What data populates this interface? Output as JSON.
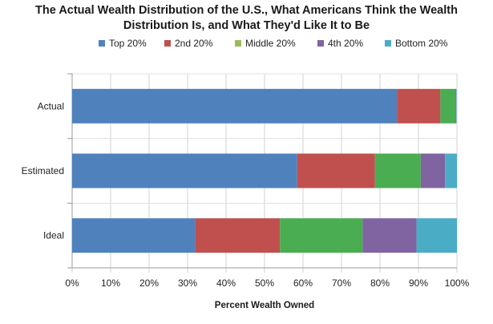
{
  "chart_data": {
    "type": "bar",
    "orientation": "horizontal",
    "stacked": true,
    "title": "The Actual Wealth Distribution of the U.S., What Americans Think the Wealth Distribution Is, and What They'd Like It to Be",
    "title_lines": [
      "The Actual Wealth Distribution of the U.S., What Americans Think the Wealth",
      "Distribution Is, and What They'd Like It to Be"
    ],
    "xlabel": "Percent Wealth Owned",
    "ylabel": "",
    "xlim": [
      0,
      100
    ],
    "xticks": [
      "0%",
      "10%",
      "20%",
      "30%",
      "40%",
      "50%",
      "60%",
      "70%",
      "80%",
      "90%",
      "100%"
    ],
    "categories": [
      "Actual",
      "Estimated",
      "Ideal"
    ],
    "legend_position": "top",
    "grid": "vertical",
    "series": [
      {
        "name": "Top 20%",
        "color": "#4f81bd",
        "values": [
          84.4,
          58.5,
          32.0
        ]
      },
      {
        "name": "2nd 20%",
        "color": "#c0504d",
        "values": [
          11.3,
          20.2,
          22.0
        ]
      },
      {
        "name": "Middle 20%",
        "color": "#4aad52",
        "values": [
          3.9,
          11.9,
          21.5
        ]
      },
      {
        "name": "4th 20%",
        "color": "#8064a2",
        "values": [
          0.2,
          6.3,
          14.0
        ]
      },
      {
        "name": "Bottom 20%",
        "color": "#4bacc6",
        "values": [
          0.1,
          3.1,
          10.5
        ]
      }
    ]
  }
}
